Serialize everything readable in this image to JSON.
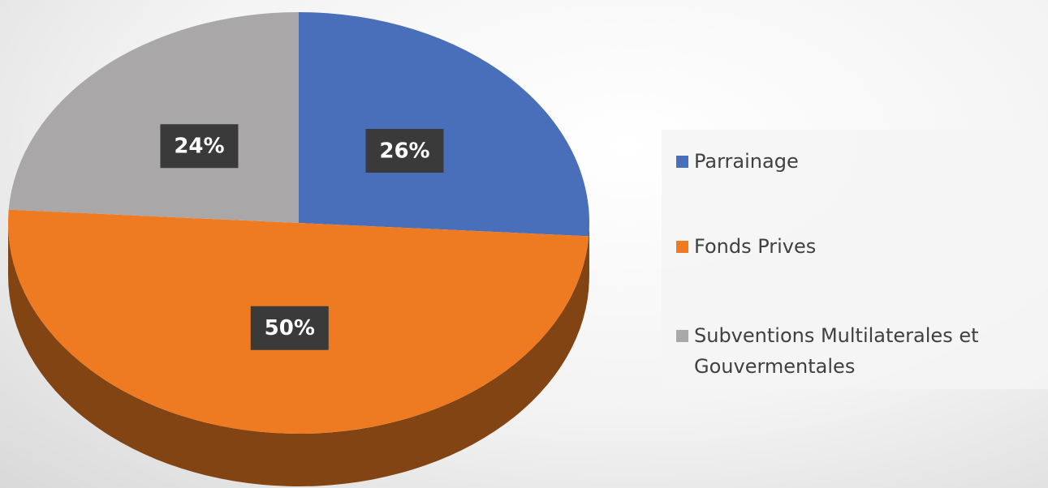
{
  "chart_data": {
    "type": "pie",
    "categories": [
      "Parrainage",
      "Fonds Prives",
      "Subventions Multilaterales et Gouvermentales"
    ],
    "values": [
      26,
      50,
      24
    ],
    "value_labels": [
      "26%",
      "50%",
      "24%"
    ],
    "colors": [
      "#4a6fba",
      "#ee7b22",
      "#a9a7a8"
    ],
    "legend": "right"
  }
}
